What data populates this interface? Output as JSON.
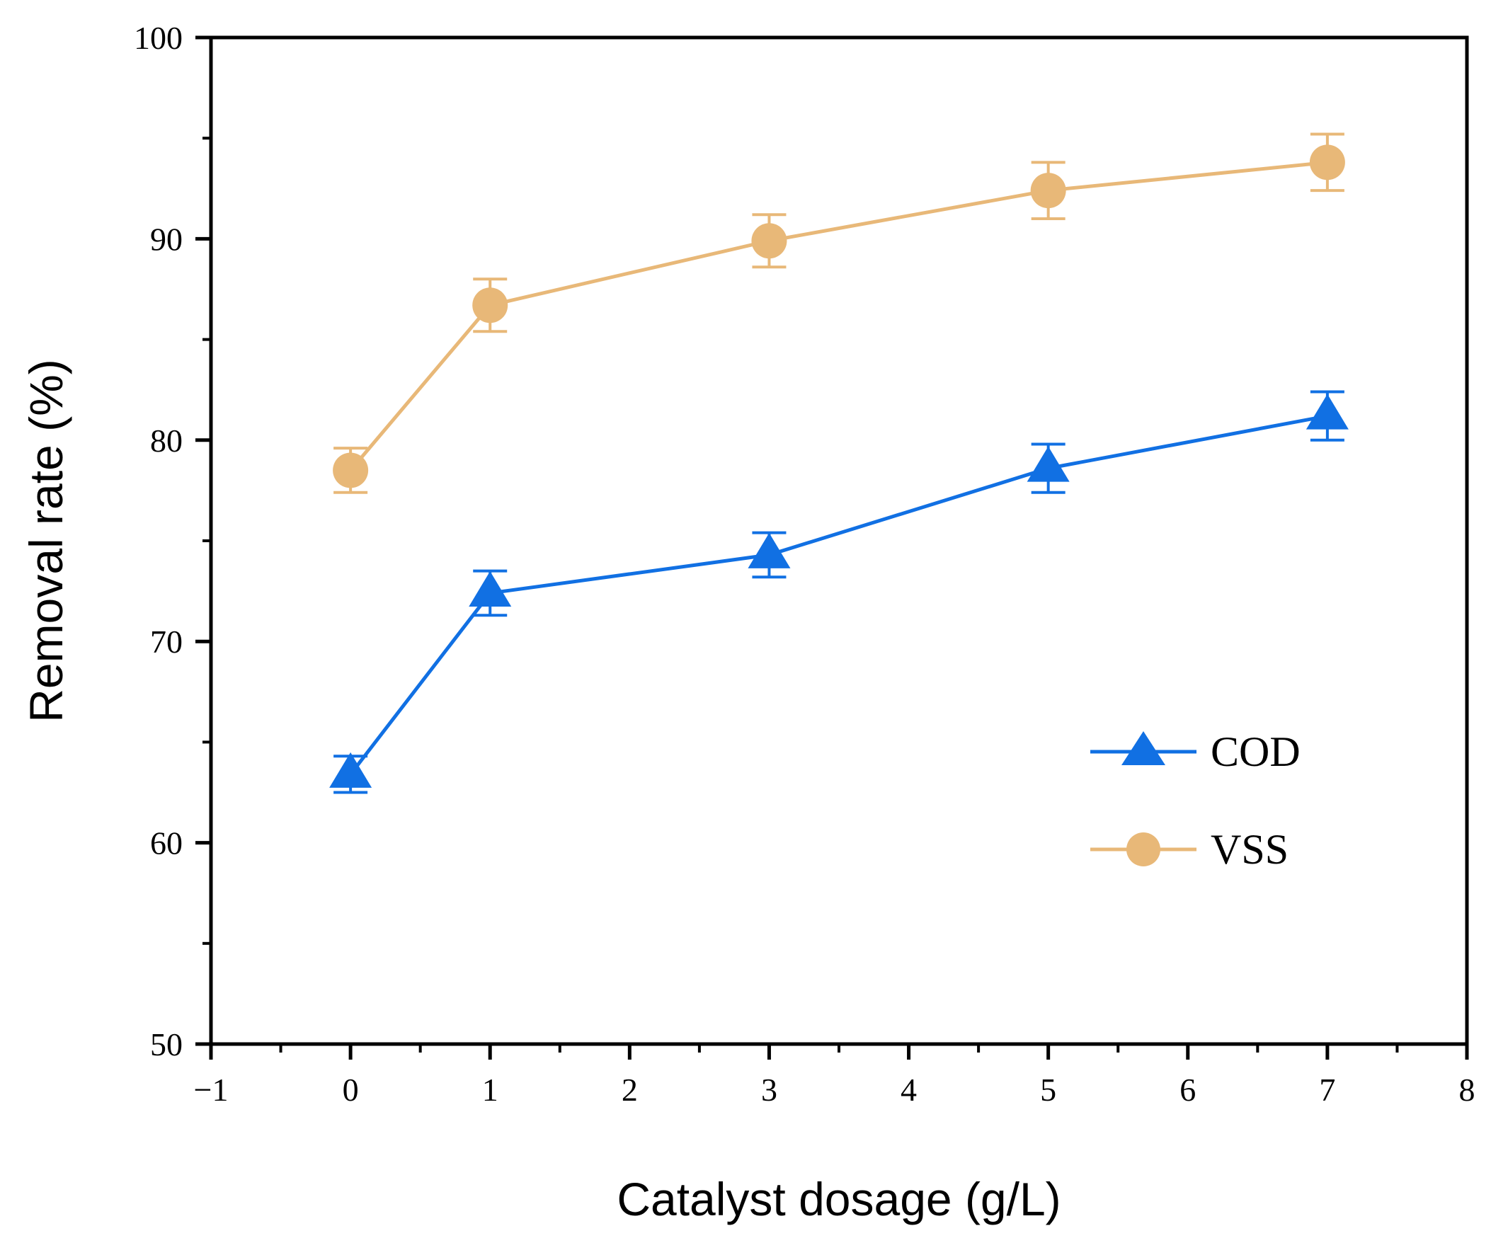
{
  "chart_data": {
    "type": "line",
    "title": "",
    "xlabel": "Catalyst dosage (g/L)",
    "ylabel": "Removal rate (%)",
    "xlim": [
      -1,
      8
    ],
    "ylim": [
      50,
      100
    ],
    "x_major_ticks": [
      -1,
      0,
      1,
      2,
      3,
      4,
      5,
      6,
      7,
      8
    ],
    "x_tick_labels": [
      "−1",
      "0",
      "1",
      "2",
      "3",
      "4",
      "5",
      "6",
      "7",
      "8"
    ],
    "y_major_ticks": [
      50,
      60,
      70,
      80,
      90,
      100
    ],
    "y_tick_labels": [
      "50",
      "60",
      "70",
      "80",
      "90",
      "100"
    ],
    "grid": false,
    "legend_position": "right-lower",
    "x": [
      0,
      1,
      3,
      5,
      7
    ],
    "series": [
      {
        "name": "COD",
        "marker": "triangle",
        "color": "#1170E3",
        "values": [
          63.4,
          72.4,
          74.3,
          78.6,
          81.2
        ],
        "error": [
          0.9,
          1.1,
          1.1,
          1.2,
          1.2
        ]
      },
      {
        "name": "VSS",
        "marker": "circle",
        "color": "#E8B878",
        "values": [
          78.5,
          86.7,
          89.9,
          92.4,
          93.8
        ],
        "error": [
          1.1,
          1.3,
          1.3,
          1.4,
          1.4
        ]
      }
    ]
  }
}
